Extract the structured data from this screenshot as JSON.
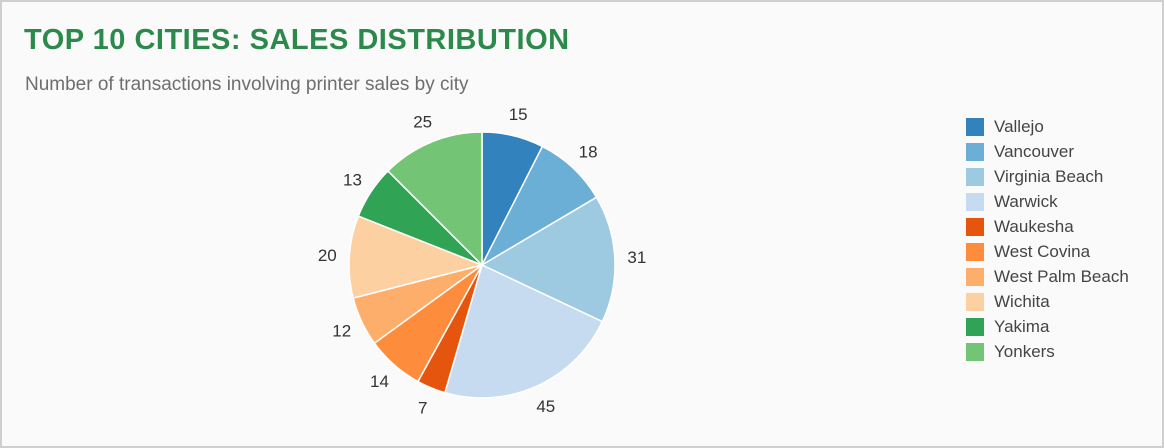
{
  "header": {
    "title": "TOP 10 CITIES: SALES DISTRIBUTION",
    "subtitle": "Number of transactions involving printer sales by city"
  },
  "chart_data": {
    "type": "pie",
    "title": "TOP 10 CITIES: SALES DISTRIBUTION",
    "subtitle": "Number of transactions involving printer sales by city",
    "legend_position": "right",
    "start_angle_deg": 0,
    "direction": "clockwise",
    "slices": [
      {
        "label": "Vallejo",
        "value": 15,
        "color": "#3182bd"
      },
      {
        "label": "Vancouver",
        "value": 18,
        "color": "#6baed6"
      },
      {
        "label": "Virginia Beach",
        "value": 31,
        "color": "#9ecae1"
      },
      {
        "label": "Warwick",
        "value": 45,
        "color": "#c6dbef"
      },
      {
        "label": "Waukesha",
        "value": 7,
        "color": "#e6550d"
      },
      {
        "label": "West Covina",
        "value": 14,
        "color": "#fd8d3c"
      },
      {
        "label": "West Palm Beach",
        "value": 12,
        "color": "#fdae6b"
      },
      {
        "label": "Wichita",
        "value": 20,
        "color": "#fdd0a2"
      },
      {
        "label": "Yakima",
        "value": 13,
        "color": "#31a354"
      },
      {
        "label": "Yonkers",
        "value": 25,
        "color": "#74c476"
      }
    ]
  }
}
